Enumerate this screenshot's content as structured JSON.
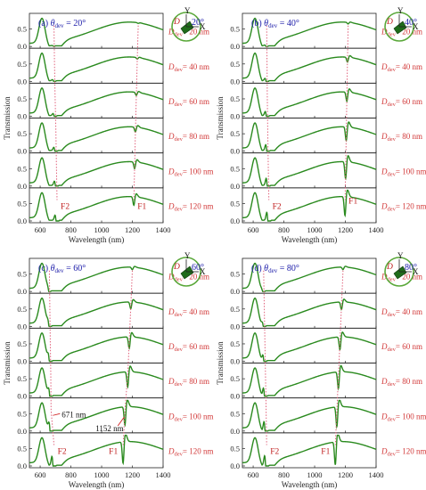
{
  "figure": {
    "y_axis_label": "Transmission",
    "x_axis_label": "Wavelength (nm)",
    "x_ticks": [
      "600",
      "800",
      "1000",
      "1200",
      "1400"
    ],
    "y_ticks": [
      "0.5",
      "0.0"
    ],
    "d_labels": [
      "= 20 nm",
      "= 40 nm",
      "= 60 nm",
      "= 80 nm",
      "= 100 nm",
      "= 120 nm"
    ],
    "d_symbol": "D",
    "d_subscript": "dev",
    "series_color": "#2a8a1e",
    "guide_color": "#e0607a",
    "panel_title_color": "#1a1aa8",
    "d_label_color": "#d23a3a"
  },
  "panels": [
    {
      "letter": "(a)",
      "theta_sym": "θ",
      "theta_sub": "dev",
      "theta_val": "= 20°",
      "inset_angle": "20°",
      "f1": "F1",
      "f2": "F2"
    },
    {
      "letter": "(b)",
      "theta_sym": "θ",
      "theta_sub": "dev",
      "theta_val": "= 40°",
      "inset_angle": "40°",
      "f1": "F1",
      "f2": "F2"
    },
    {
      "letter": "(c)",
      "theta_sym": "θ",
      "theta_sub": "dev",
      "theta_val": "= 60°",
      "inset_angle": "60°",
      "f1": "F1",
      "f2": "F2",
      "ann1": "671 nm",
      "ann2": "1152 nm"
    },
    {
      "letter": "(d)",
      "theta_sym": "θ",
      "theta_sub": "dev",
      "theta_val": "= 80°",
      "inset_angle": "80°",
      "f1": "F1",
      "f2": "F2"
    }
  ],
  "inset": {
    "axis_y": "Y",
    "axis_x": "X",
    "dev_label": "D"
  },
  "chart_data": {
    "type": "line",
    "x_label": "Wavelength (nm)",
    "y_label": "Transmission",
    "xlim": [
      530,
      1400
    ],
    "ylim": [
      0,
      0.9
    ],
    "d_values_nm": [
      20,
      40,
      60,
      80,
      100,
      120
    ],
    "panels": [
      {
        "theta_dev_deg": 20,
        "f2_nm": [
          690,
          693,
          697,
          702,
          706,
          710
        ],
        "f1_nm": [
          1238,
          1232,
          1226,
          1220,
          1215,
          1210
        ],
        "f2_depth": [
          0.02,
          0.08,
          0.16,
          0.25,
          0.33,
          0.4
        ],
        "f1_depth": [
          0.02,
          0.05,
          0.1,
          0.16,
          0.22,
          0.28
        ]
      },
      {
        "theta_dev_deg": 40,
        "f2_nm": [
          688,
          690,
          692,
          695,
          698,
          702
        ],
        "f1_nm": [
          1218,
          1214,
          1210,
          1206,
          1202,
          1198
        ],
        "f2_depth": [
          0.06,
          0.18,
          0.32,
          0.45,
          0.55,
          0.62
        ],
        "f1_depth": [
          0.05,
          0.16,
          0.3,
          0.45,
          0.55,
          0.62
        ]
      },
      {
        "theta_dev_deg": 60,
        "f2_nm": [
          660,
          663,
          666,
          669,
          671,
          690
        ],
        "f1_nm": [
          1200,
          1190,
          1180,
          1170,
          1152,
          1140
        ],
        "f2_depth": [
          0.1,
          0.25,
          0.4,
          0.5,
          0.62,
          0.7
        ],
        "f1_depth": [
          0.08,
          0.22,
          0.38,
          0.5,
          0.6,
          0.7
        ],
        "annotations": [
          "671 nm",
          "1152 nm"
        ]
      },
      {
        "theta_dev_deg": 80,
        "f2_nm": [
          668,
          672,
          676,
          680,
          684,
          688
        ],
        "f1_nm": [
          1185,
          1175,
          1165,
          1155,
          1145,
          1135
        ],
        "f2_depth": [
          0.1,
          0.28,
          0.45,
          0.58,
          0.68,
          0.75
        ],
        "f1_depth": [
          0.08,
          0.25,
          0.42,
          0.55,
          0.65,
          0.75
        ]
      }
    ]
  }
}
